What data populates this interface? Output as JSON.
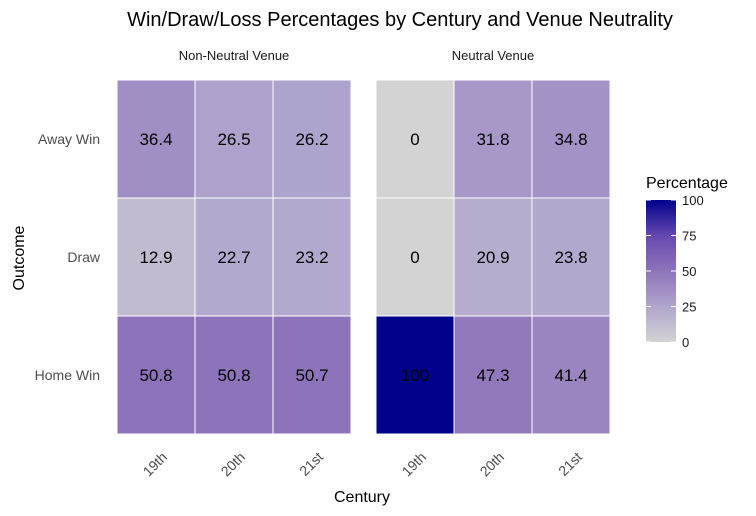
{
  "chart_data": {
    "type": "heatmap",
    "title": "Win/Draw/Loss Percentages by Century and Venue Neutrality",
    "xlabel": "Century",
    "ylabel": "Outcome",
    "x_categories": [
      "19th",
      "20th",
      "21st"
    ],
    "y_categories": [
      "Away Win",
      "Draw",
      "Home Win"
    ],
    "facets": [
      {
        "name": "Non-Neutral Venue",
        "values": [
          [
            36.4,
            26.5,
            26.2
          ],
          [
            12.9,
            22.7,
            23.2
          ],
          [
            50.8,
            50.8,
            50.7
          ]
        ]
      },
      {
        "name": "Neutral Venue",
        "values": [
          [
            0,
            31.8,
            34.8
          ],
          [
            0,
            20.9,
            23.8
          ],
          [
            100,
            47.3,
            41.4
          ]
        ]
      }
    ],
    "legend": {
      "title": "Percentage",
      "ticks": [
        0,
        25,
        50,
        75,
        100
      ],
      "range": [
        0,
        100
      ],
      "position": "right",
      "colors": [
        "#d3d3d3",
        "#00008b"
      ]
    }
  }
}
